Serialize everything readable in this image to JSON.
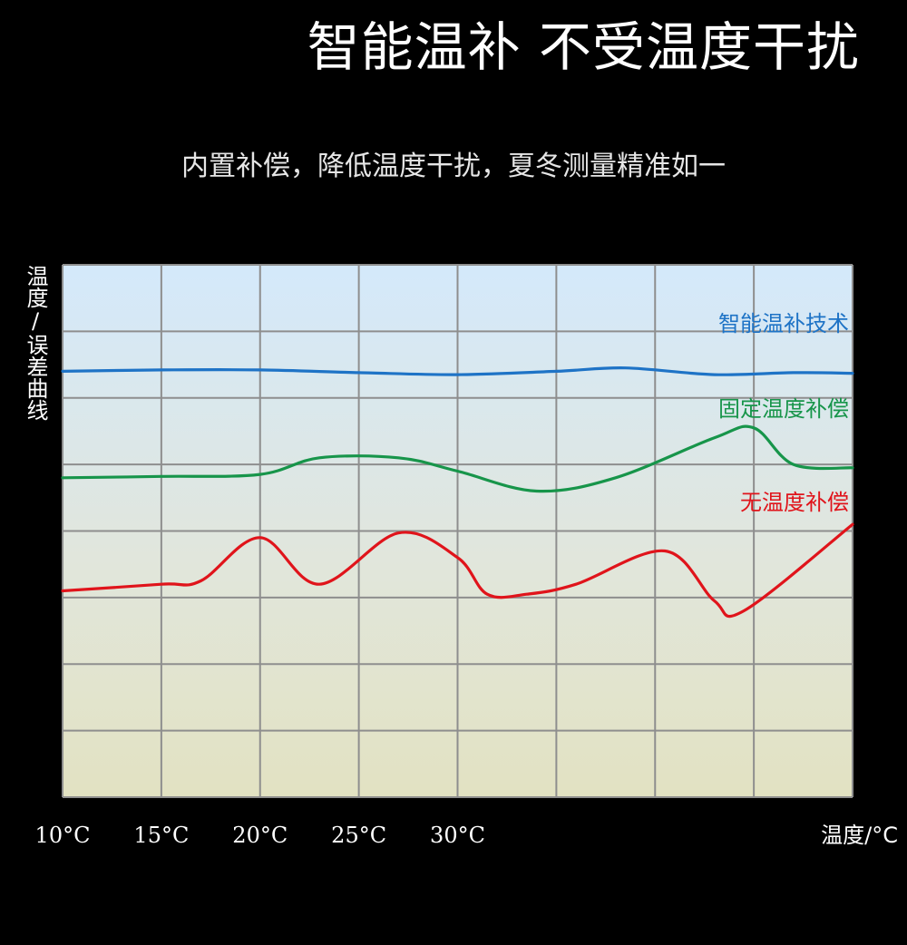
{
  "title": "智能温补 不受温度干扰",
  "subtitle": "内置补偿，降低温度干扰，夏冬测量精准如一",
  "chart_data": {
    "type": "line",
    "title": "",
    "xlabel": "温度/°C",
    "ylabel": "温度/误差曲线",
    "x_tick_labels": [
      "10°C",
      "15°C",
      "20°C",
      "25°C",
      "30°C"
    ],
    "xlim": [
      10,
      50
    ],
    "ylim": [
      0,
      8
    ],
    "grid": true,
    "legend": "inline-right",
    "series": [
      {
        "name": "智能温补技术",
        "color": "#1e73c6",
        "x": [
          10,
          15,
          20,
          25,
          30,
          35,
          38.5,
          43,
          47,
          50
        ],
        "y": [
          6.4,
          6.42,
          6.42,
          6.38,
          6.35,
          6.4,
          6.45,
          6.35,
          6.38,
          6.37
        ]
      },
      {
        "name": "固定温度补偿",
        "color": "#17954a",
        "x": [
          10,
          15,
          20,
          23,
          27,
          30,
          34,
          38,
          43,
          45,
          47,
          50
        ],
        "y": [
          4.8,
          4.82,
          4.85,
          5.1,
          5.1,
          4.9,
          4.6,
          4.8,
          5.4,
          5.55,
          5.0,
          4.95
        ]
      },
      {
        "name": "无温度补偿",
        "color": "#e0141b",
        "x": [
          10,
          15,
          17,
          20,
          23,
          27,
          30,
          31.5,
          33.5,
          36,
          40.5,
          43,
          44.5,
          50
        ],
        "y": [
          3.1,
          3.2,
          3.25,
          3.9,
          3.2,
          3.97,
          3.6,
          3.05,
          3.05,
          3.2,
          3.7,
          2.95,
          2.8,
          4.1
        ]
      }
    ]
  }
}
